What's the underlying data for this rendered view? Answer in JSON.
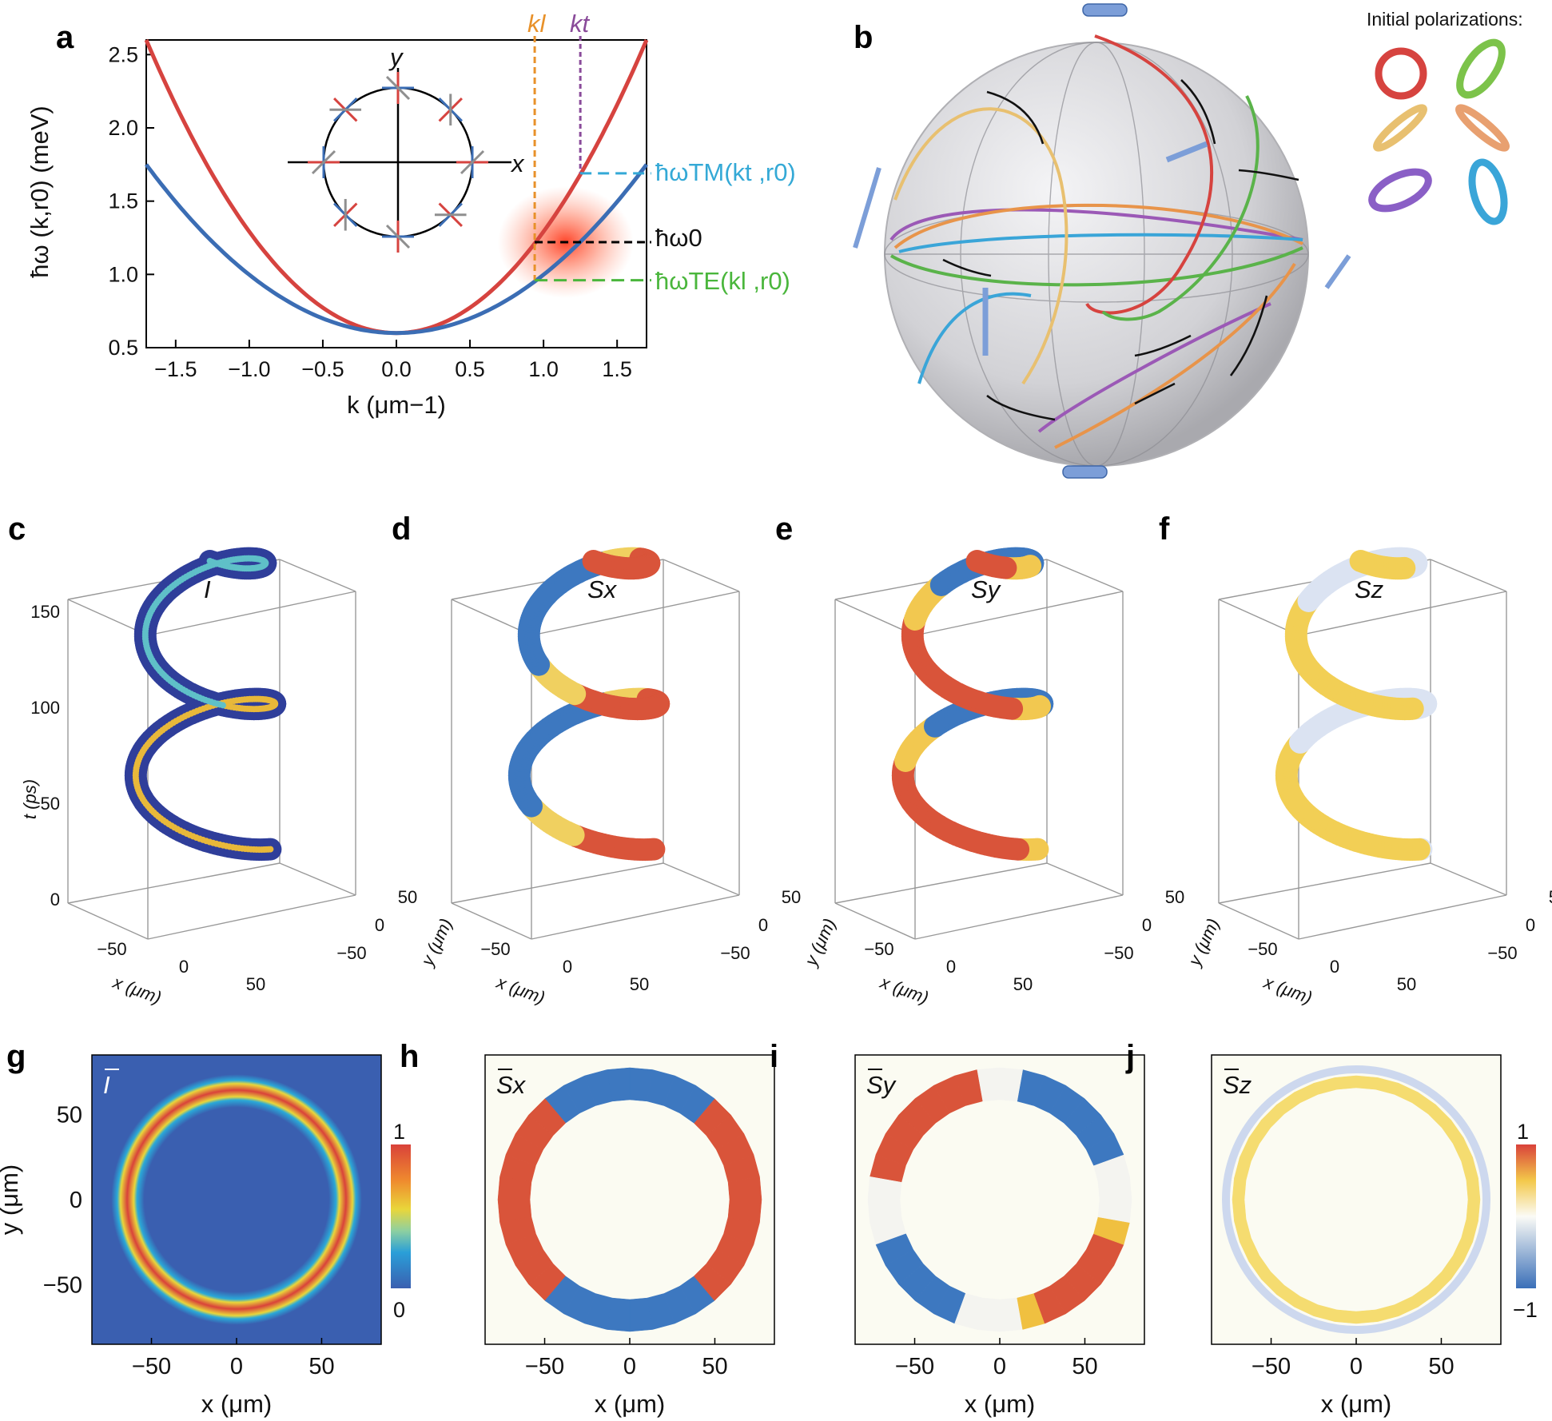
{
  "panel_labels": {
    "a": "a",
    "b": "b",
    "c": "c",
    "d": "d",
    "e": "e",
    "f": "f",
    "g": "g",
    "h": "h",
    "i": "i",
    "j": "j"
  },
  "panel_a": {
    "ylabel": "ħω (k,r0) (meV)",
    "xlabel": "k (μm−1)",
    "xticks": [
      "−1.5",
      "−1.0",
      "−0.5",
      "0.0",
      "0.5",
      "1.0",
      "1.5"
    ],
    "yticks": [
      "0.5",
      "1.0",
      "1.5",
      "2.0",
      "2.5"
    ],
    "kl_label": "kl",
    "kt_label": "kt",
    "tm_label": "ħωTM(kt ,r0)",
    "w0_label": "ħω0",
    "te_label": "ħωTE(kl ,r0)",
    "inset_x": "x",
    "inset_y": "y"
  },
  "panel_b": {
    "legend_title": "Initial polarizations:"
  },
  "panel_3d": {
    "c_title": "I",
    "d_title": "Sx",
    "e_title": "Sy",
    "f_title": "Sz",
    "t_label": "t (ps)",
    "t_ticks": [
      "0",
      "50",
      "100",
      "150"
    ],
    "x_label": "x (μm)",
    "y_label": "y (μm)",
    "x_ticks": [
      "−50",
      "0",
      "50"
    ],
    "y_ticks": [
      "50",
      "0",
      "−50"
    ]
  },
  "panel_maps": {
    "g_title": "I",
    "h_title": "Sx",
    "i_title": "Sy",
    "j_title": "Sz",
    "x_label": "x (μm)",
    "y_label": "y (μm)",
    "x_ticks": [
      "−50",
      "0",
      "50"
    ],
    "y_ticks": [
      "50",
      "0",
      "−50"
    ],
    "g_cbar_top": "1",
    "g_cbar_bottom": "0",
    "j_cbar_top": "1",
    "j_cbar_bottom": "−1"
  },
  "colors": {
    "tm_branch": "#d6433f",
    "te_branch": "#3b6db4",
    "kl": "#e8912a",
    "kt": "#8a4b9a",
    "tm_dash": "#34a9d6",
    "te_dash": "#4ab63c"
  },
  "chart_data": [
    {
      "type": "line",
      "panel": "a",
      "xlabel": "k (μm−1)",
      "ylabel": "ħω (k,r0) (meV)",
      "xlim": [
        -1.7,
        1.7
      ],
      "ylim": [
        0.5,
        2.6
      ],
      "series": [
        {
          "name": "",
          "color": "#d6433f",
          "x": [
            -1.7,
            -1.5,
            -1.0,
            -0.5,
            0.0,
            0.5,
            1.0,
            1.5,
            1.7
          ],
          "values": [
            2.6,
            2.25,
            1.35,
            0.8,
            0.6,
            0.8,
            1.35,
            2.25,
            2.6
          ]
        },
        {
          "name": "",
          "color": "#3b6db4",
          "x": [
            -1.7,
            -1.5,
            -1.0,
            -0.5,
            0.0,
            0.5,
            1.0,
            1.5,
            1.7
          ],
          "values": [
            1.75,
            1.52,
            1.05,
            0.72,
            0.6,
            0.72,
            1.05,
            1.52,
            1.75
          ]
        }
      ],
      "markers": {
        "kl": 0.94,
        "kt": 1.25,
        "tm_energy": 1.69,
        "w0_energy": 1.22,
        "te_energy": 0.96
      }
    }
  ]
}
